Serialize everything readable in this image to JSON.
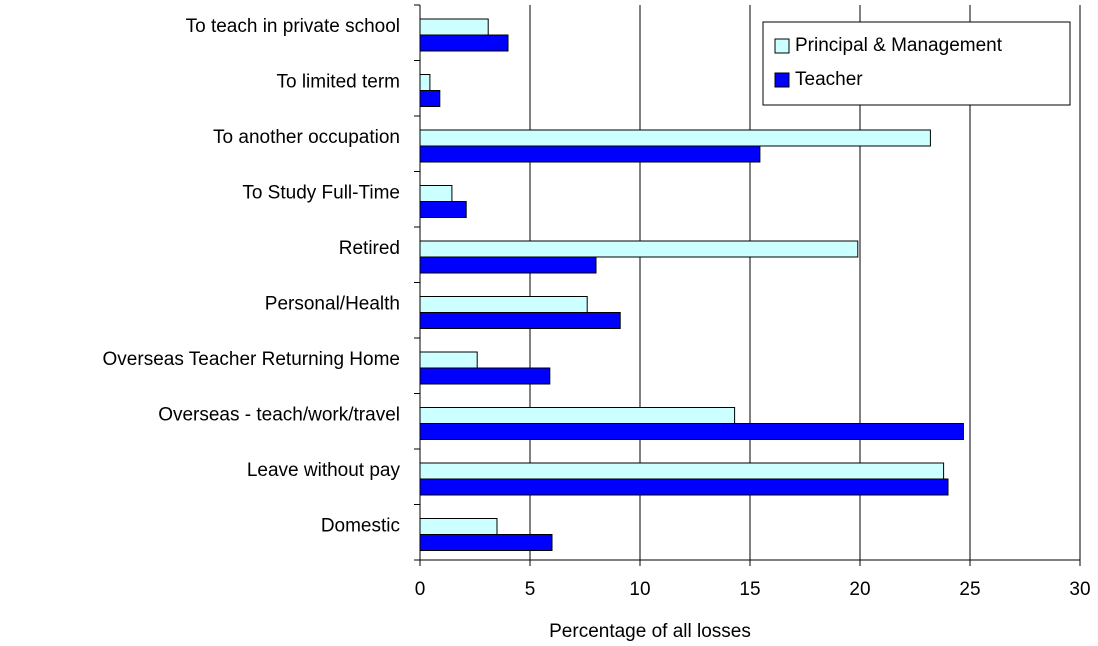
{
  "chart_data": {
    "type": "hbar",
    "xlabel": "Percentage of all losses",
    "categories": [
      "To teach in private school",
      "To limited term",
      "To another occupation",
      "To Study Full-Time",
      "Retired",
      "Personal/Health",
      "Overseas Teacher Returning Home",
      "Overseas - teach/work/travel",
      "Leave without pay",
      "Domestic"
    ],
    "series": [
      {
        "name": "Principal & Management",
        "color": "#ccffff",
        "values": [
          3.1,
          0.45,
          23.2,
          1.45,
          19.9,
          7.6,
          2.6,
          14.3,
          23.8,
          3.5
        ]
      },
      {
        "name": "Teacher",
        "color": "#0000ff",
        "values": [
          4.0,
          0.9,
          15.45,
          2.1,
          8.0,
          9.1,
          5.9,
          24.7,
          24.0,
          6.0
        ]
      }
    ],
    "xlim": [
      0,
      30
    ],
    "xticks": [
      0,
      5,
      10,
      15,
      20,
      25,
      30
    ],
    "grid": true,
    "legend": "top-right"
  }
}
